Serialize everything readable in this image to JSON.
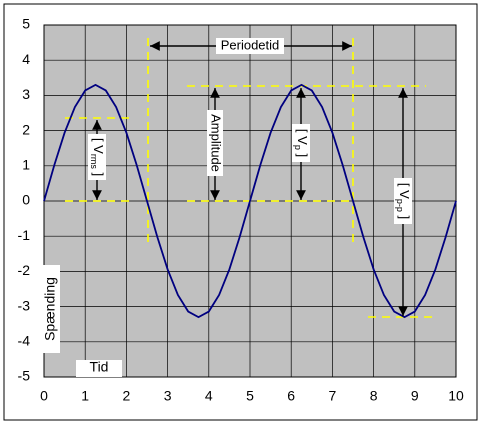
{
  "chart_data": {
    "type": "line",
    "x": [
      0,
      0.25,
      0.5,
      0.75,
      1,
      1.25,
      1.5,
      1.75,
      2,
      2.25,
      2.5,
      2.75,
      3,
      3.25,
      3.5,
      3.75,
      4,
      4.25,
      4.5,
      4.75,
      5,
      5.25,
      5.5,
      5.75,
      6,
      6.25,
      6.5,
      6.75,
      7,
      7.25,
      7.5,
      7.75,
      8,
      8.25,
      8.5,
      8.75,
      9,
      9.25,
      9.5,
      9.75,
      10
    ],
    "series": [
      {
        "color": "#000080",
        "values": [
          0,
          1.02,
          1.94,
          2.67,
          3.14,
          3.3,
          3.14,
          2.67,
          1.94,
          1.02,
          0,
          -1.02,
          -1.94,
          -2.67,
          -3.14,
          -3.3,
          -3.14,
          -2.67,
          -1.94,
          -1.02,
          0,
          1.02,
          1.94,
          2.67,
          3.14,
          3.3,
          3.14,
          2.67,
          1.94,
          1.02,
          0,
          -1.02,
          -1.94,
          -2.67,
          -3.14,
          -3.3,
          -3.14,
          -2.67,
          -1.94,
          -1.02,
          0
        ]
      }
    ],
    "xlim": [
      0,
      10
    ],
    "xticks": [
      0,
      1,
      2,
      3,
      4,
      5,
      6,
      7,
      8,
      9,
      10
    ],
    "ylim": [
      -5,
      5
    ],
    "yticks": [
      -5,
      -4,
      -3,
      -2,
      -1,
      0,
      1,
      2,
      3,
      4,
      5
    ],
    "grid": true,
    "x_label": "Tid",
    "y_label": "Spænding",
    "annotations": {
      "period": "Periodetid",
      "amplitude": "Amplitude",
      "vrms": {
        "prefix": "[ V",
        "sub": "rms",
        "suffix": " ]"
      },
      "vp": {
        "prefix": "[ V",
        "sub": "p",
        "suffix": " ]"
      },
      "vpp": {
        "prefix": "[ V",
        "sub": "p-p",
        "suffix": " ]"
      }
    }
  }
}
